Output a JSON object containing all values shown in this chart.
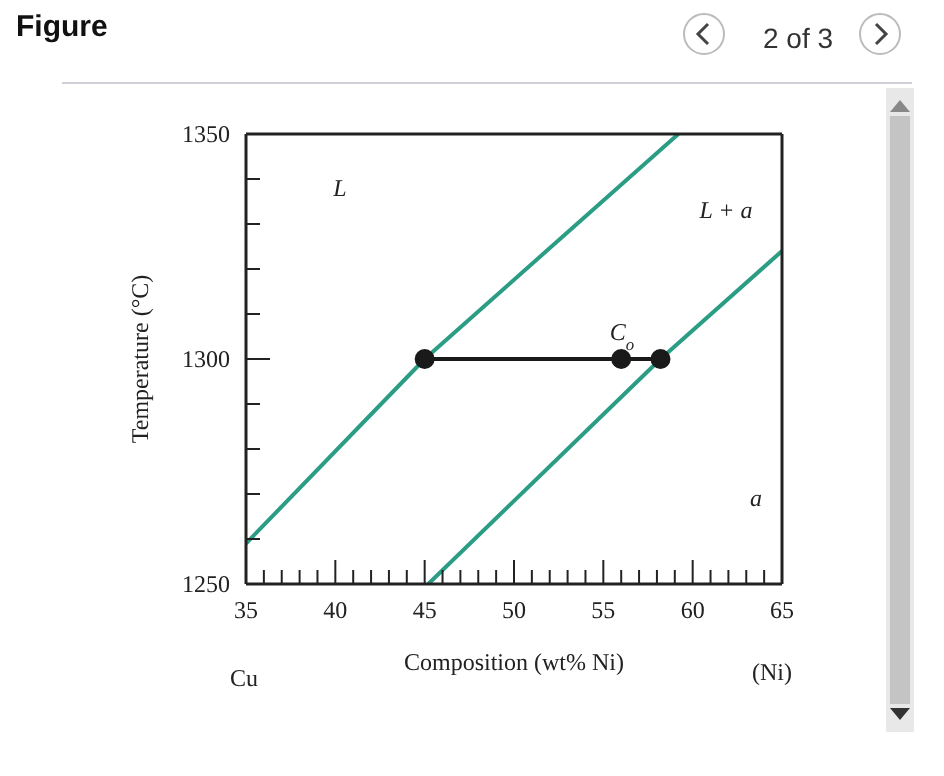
{
  "chart_data": {
    "type": "line",
    "title": "Figure",
    "xlabel": "Composition (wt% Ni)",
    "ylabel": "Temperature (°C)",
    "xlim": [
      35,
      65
    ],
    "ylim": [
      1250,
      1350
    ],
    "xticks": [
      35,
      {
        "value": 36,
        "label": null
      },
      {
        "value": 37,
        "label": null
      },
      {
        "value": 38,
        "label": null
      },
      {
        "value": 39,
        "label": null
      },
      40,
      {
        "value": 41,
        "label": null
      },
      {
        "value": 42,
        "label": null
      },
      {
        "value": 43,
        "label": null
      },
      {
        "value": 44,
        "label": null
      },
      45,
      {
        "value": 46,
        "label": null
      },
      {
        "value": 47,
        "label": null
      },
      {
        "value": 48,
        "label": null
      },
      {
        "value": 49,
        "label": null
      },
      50,
      {
        "value": 51,
        "label": null
      },
      {
        "value": 52,
        "label": null
      },
      {
        "value": 53,
        "label": null
      },
      {
        "value": 54,
        "label": null
      },
      55,
      {
        "value": 56,
        "label": null
      },
      {
        "value": 57,
        "label": null
      },
      {
        "value": 58,
        "label": null
      },
      {
        "value": 59,
        "label": null
      },
      60,
      {
        "value": 61,
        "label": null
      },
      {
        "value": 62,
        "label": null
      },
      {
        "value": 63,
        "label": null
      },
      {
        "value": 64,
        "label": null
      },
      65
    ],
    "yticks": [
      1250,
      {
        "value": 1260,
        "label": null
      },
      {
        "value": 1270,
        "label": null
      },
      {
        "value": 1280,
        "label": null
      },
      {
        "value": 1290,
        "label": null
      },
      1300,
      {
        "value": 1310,
        "label": null
      },
      {
        "value": 1320,
        "label": null
      },
      {
        "value": 1330,
        "label": null
      },
      {
        "value": 1340,
        "label": null
      },
      1350
    ],
    "line_style": "solid",
    "series": [
      {
        "color": "#2a9d84",
        "x": [
          35,
          45,
          59.2
        ],
        "values": [
          1259,
          1300,
          1350
        ],
        "marker": "none"
      },
      {
        "color": "#2a9d84",
        "x": [
          45.2,
          58.2,
          65
        ],
        "values": [
          1250,
          1300,
          1324
        ],
        "marker": "none"
      },
      {
        "color": "#1a1a1a",
        "x": [
          45,
          56,
          58.2
        ],
        "values": [
          1300,
          1300,
          1300
        ],
        "marker": "circle"
      }
    ],
    "annotations": [
      "L",
      "L + a",
      "C$_{o}$",
      "a",
      "Cu",
      "(Ni)",
      "2 of 3"
    ]
  }
}
